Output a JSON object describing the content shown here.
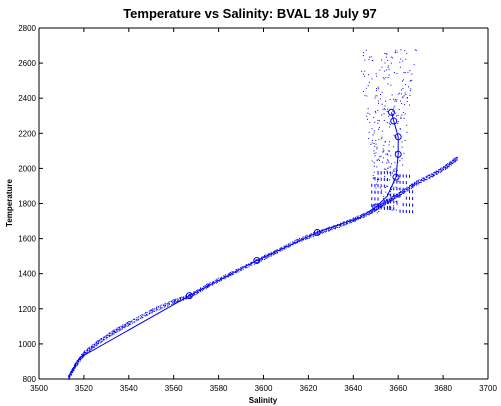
{
  "chart_data": {
    "type": "scatter",
    "title": "Temperature vs Salinity: BVAL 18 July 97",
    "xlabel": "Salinity",
    "ylabel": "Temperature",
    "xlim": [
      3500,
      3700
    ],
    "ylim": [
      800,
      2800
    ],
    "xticks": [
      3500,
      3520,
      3540,
      3560,
      3580,
      3600,
      3620,
      3640,
      3660,
      3680,
      3700
    ],
    "yticks": [
      800,
      1000,
      1200,
      1400,
      1600,
      1800,
      2000,
      2200,
      2400,
      2600,
      2800
    ],
    "grid": false,
    "series": [
      {
        "style": "dots",
        "color": "#0000ee",
        "main_trend": [
          [
            3513,
            810
          ],
          [
            3516,
            880
          ],
          [
            3520,
            950
          ],
          [
            3526,
            1010
          ],
          [
            3533,
            1070
          ],
          [
            3540,
            1120
          ],
          [
            3550,
            1190
          ],
          [
            3560,
            1245
          ],
          [
            3567,
            1275
          ],
          [
            3575,
            1335
          ],
          [
            3585,
            1400
          ],
          [
            3597,
            1475
          ],
          [
            3605,
            1525
          ],
          [
            3615,
            1590
          ],
          [
            3624,
            1635
          ],
          [
            3632,
            1670
          ],
          [
            3640,
            1710
          ],
          [
            3647,
            1750
          ],
          [
            3652,
            1790
          ],
          [
            3657,
            1830
          ],
          [
            3662,
            1870
          ],
          [
            3668,
            1920
          ],
          [
            3675,
            1965
          ],
          [
            3681,
            2010
          ],
          [
            3686,
            2060
          ]
        ],
        "upper_cloud": {
          "salinity_range": [
            3642,
            3668
          ],
          "temperature_range": [
            1750,
            2680
          ]
        }
      },
      {
        "style": "line-with-circles",
        "color": "#0000ee",
        "points": [
          [
            3513,
            810
          ],
          [
            3518,
            920
          ],
          [
            3567,
            1275
          ],
          [
            3597,
            1475
          ],
          [
            3624,
            1635
          ],
          [
            3643,
            1720
          ],
          [
            3650,
            1780
          ],
          [
            3655,
            1840
          ],
          [
            3659,
            1950
          ],
          [
            3660,
            2080
          ],
          [
            3660,
            2180
          ],
          [
            3658,
            2270
          ],
          [
            3657,
            2320
          ]
        ],
        "circle_points": [
          [
            3567,
            1275
          ],
          [
            3597,
            1475
          ],
          [
            3624,
            1635
          ],
          [
            3650,
            1780
          ],
          [
            3659,
            1950
          ],
          [
            3660,
            2080
          ],
          [
            3660,
            2180
          ],
          [
            3658,
            2270
          ],
          [
            3657,
            2320
          ]
        ]
      }
    ]
  }
}
